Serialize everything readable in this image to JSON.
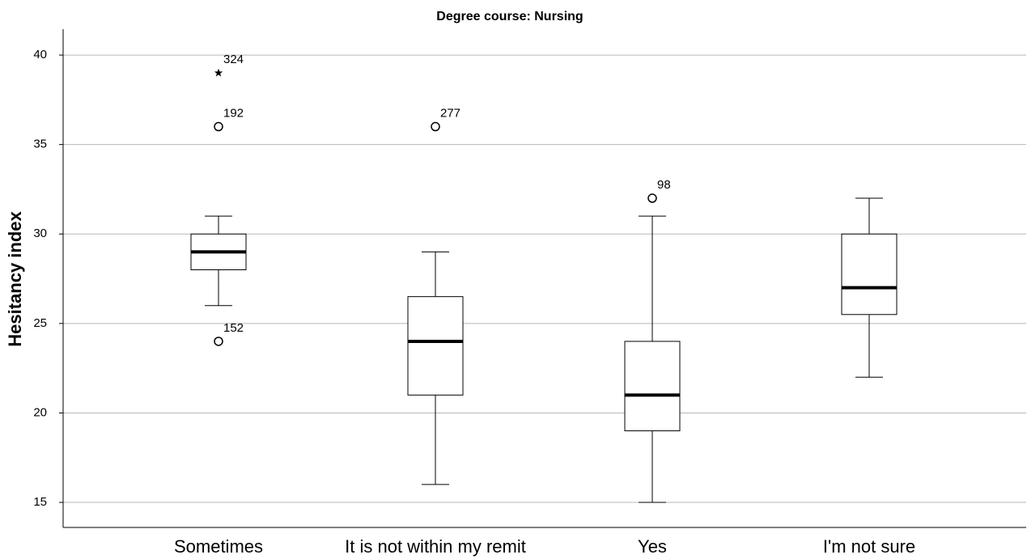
{
  "chart_data": {
    "type": "box",
    "title": "Degree course: Nursing",
    "y_label": "Hesitancy index",
    "categories": [
      "Sometimes",
      "It is not within my remit",
      "Yes",
      "I'm not sure"
    ],
    "boxes": [
      {
        "whisker_low": 26,
        "q1": 28,
        "median": 29,
        "q3": 30,
        "whisker_high": 31,
        "outliers": [
          {
            "value": 39,
            "label": "324",
            "marker": "star"
          },
          {
            "value": 36,
            "label": "192",
            "marker": "circle"
          },
          {
            "value": 24,
            "label": "152",
            "marker": "circle"
          }
        ]
      },
      {
        "whisker_low": 16,
        "q1": 21,
        "median": 24,
        "q3": 26.5,
        "whisker_high": 29,
        "outliers": [
          {
            "value": 36,
            "label": "277",
            "marker": "circle"
          }
        ]
      },
      {
        "whisker_low": 15,
        "q1": 19,
        "median": 21,
        "q3": 24,
        "whisker_high": 31,
        "outliers": [
          {
            "value": 32,
            "label": "98",
            "marker": "circle"
          }
        ]
      },
      {
        "whisker_low": 22,
        "q1": 25.5,
        "median": 27,
        "q3": 30,
        "whisker_high": 32,
        "outliers": []
      }
    ],
    "color": "#ffffff",
    "ylim": [
      13.6,
      41.45
    ],
    "yticks": [
      15,
      20,
      25,
      30,
      35,
      40
    ],
    "grid": true
  }
}
